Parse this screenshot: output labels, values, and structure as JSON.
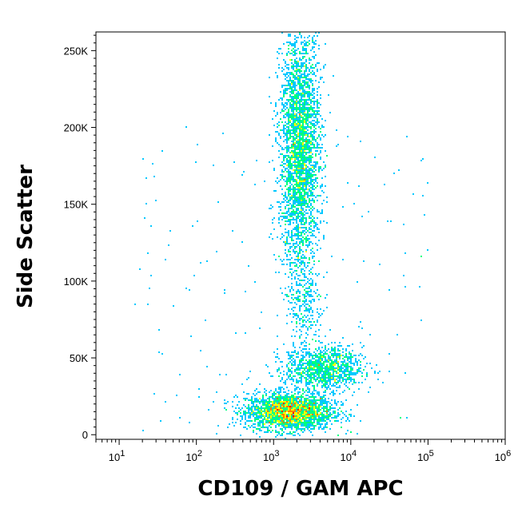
{
  "chart_data": {
    "type": "scatter",
    "title": "",
    "xlabel": "CD109 / GAM APC",
    "ylabel": "Side Scatter",
    "x_scale": "log",
    "xlim": [
      5,
      1000000
    ],
    "ylim": [
      -3000,
      262144
    ],
    "x_ticks": [
      {
        "value": 10,
        "base": "10",
        "exp": "1"
      },
      {
        "value": 100,
        "base": "10",
        "exp": "2"
      },
      {
        "value": 1000,
        "base": "10",
        "exp": "3"
      },
      {
        "value": 10000,
        "base": "10",
        "exp": "4"
      },
      {
        "value": 100000,
        "base": "10",
        "exp": "5"
      },
      {
        "value": 1000000,
        "base": "10",
        "exp": "6"
      }
    ],
    "y_ticks": [
      {
        "value": 0,
        "label": "0"
      },
      {
        "value": 50000,
        "label": "50K"
      },
      {
        "value": 100000,
        "label": "100K"
      },
      {
        "value": 150000,
        "label": "150K"
      },
      {
        "value": 200000,
        "label": "200K"
      },
      {
        "value": 250000,
        "label": "250K"
      }
    ],
    "grid": false,
    "legend": "none",
    "density_colormap": [
      "#0000ff",
      "#00c8ff",
      "#00ff80",
      "#ffff00",
      "#ff8000",
      "#ff0000"
    ],
    "populations": [
      {
        "x_center": 1600,
        "x_log_spread": 0.28,
        "y_center": 15000,
        "y_spread": 6000,
        "count": 2600,
        "peak_color": "#ff0000"
      },
      {
        "x_center": 2200,
        "x_log_spread": 0.13,
        "y_center": 185000,
        "y_spread": 40000,
        "count": 3200,
        "peak_color": "#80ff40"
      },
      {
        "x_center": 4500,
        "x_log_spread": 0.25,
        "y_center": 43000,
        "y_spread": 7000,
        "count": 1100,
        "peak_color": "#00ff80"
      },
      {
        "x_center": 2500,
        "x_log_spread": 0.12,
        "y_center": 85000,
        "y_spread": 20000,
        "count": 260,
        "peak_color": "#0000ff"
      }
    ]
  }
}
